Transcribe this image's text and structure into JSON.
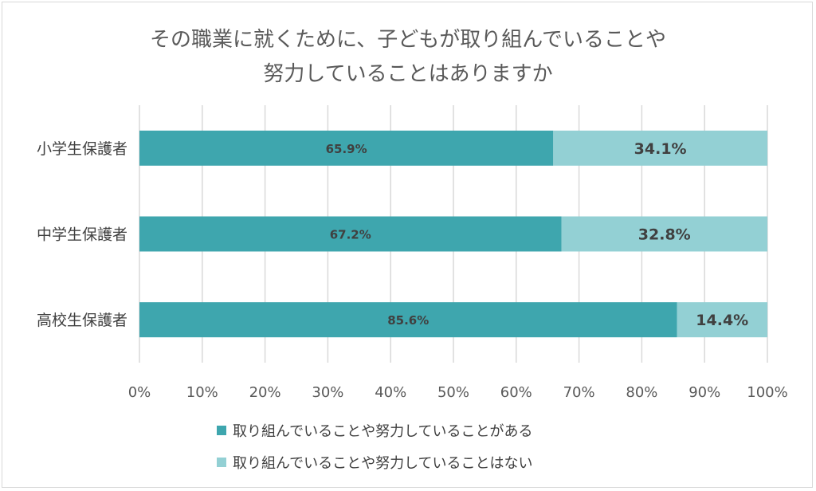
{
  "chart_data": {
    "type": "bar",
    "orientation": "horizontal",
    "stacked": "percent",
    "title_lines": [
      "その職業に就くために、子どもが取り組んでいることや",
      "努力していることはありますか"
    ],
    "categories": [
      "小学生保護者",
      "中学生保護者",
      "高校生保護者"
    ],
    "series": [
      {
        "name": "取り組んでいることや努力していることがある",
        "color": "#3ea6ae",
        "values": [
          65.9,
          67.2,
          85.6
        ],
        "labels": [
          "65.9%",
          "67.2%",
          "85.6%"
        ]
      },
      {
        "name": "取り組んでいることや努力していることはない",
        "color": "#93d0d4",
        "values": [
          34.1,
          32.8,
          14.4
        ],
        "labels": [
          "34.1%",
          "32.8%",
          "14.4%"
        ]
      }
    ],
    "xlim": [
      0,
      100
    ],
    "ticks": [
      "0%",
      "10%",
      "20%",
      "30%",
      "40%",
      "50%",
      "60%",
      "70%",
      "80%",
      "90%",
      "100%"
    ],
    "grid": "vertical",
    "legend": "bottom"
  }
}
